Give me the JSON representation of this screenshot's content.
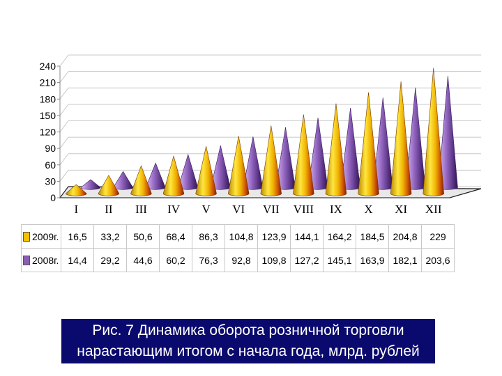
{
  "chart_data": {
    "type": "bar",
    "bar_shape": "cone",
    "view": "3d",
    "categories": [
      "I",
      "II",
      "III",
      "IV",
      "V",
      "VI",
      "VII",
      "VIII",
      "IX",
      "X",
      "XI",
      "XII"
    ],
    "series": [
      {
        "name": "2009г.",
        "values": [
          16.5,
          33.2,
          50.6,
          68.4,
          86.3,
          104.8,
          123.9,
          144.1,
          164.2,
          184.5,
          204.8,
          229
        ]
      },
      {
        "name": "2008г.",
        "values": [
          14.4,
          29.2,
          44.6,
          60.2,
          76.3,
          92.8,
          109.8,
          127.2,
          145.1,
          163.9,
          182.1,
          203.6
        ]
      }
    ],
    "value_labels": {
      "2009г.": [
        "16,5",
        "33,2",
        "50,6",
        "68,4",
        "86,3",
        "104,8",
        "123,9",
        "144,1",
        "164,2",
        "184,5",
        "204,8",
        "229"
      ],
      "2008г.": [
        "14,4",
        "29,2",
        "44,6",
        "60,2",
        "76,3",
        "92,8",
        "109,8",
        "127,2",
        "145,1",
        "163,9",
        "182,1",
        "203,6"
      ]
    },
    "ylim": [
      0,
      240
    ],
    "yticks": [
      0,
      30,
      60,
      90,
      120,
      150,
      180,
      210,
      240
    ],
    "grid": true,
    "legend": "data-table-below",
    "colors": {
      "2009г.": "#f2c200",
      "2008г.": "#8a5fb0"
    }
  },
  "caption": {
    "line1": "Рис. 7 Динамика оборота розничной торговли",
    "line2": "нарастающим итогом с начала года, млрд. рублей"
  }
}
